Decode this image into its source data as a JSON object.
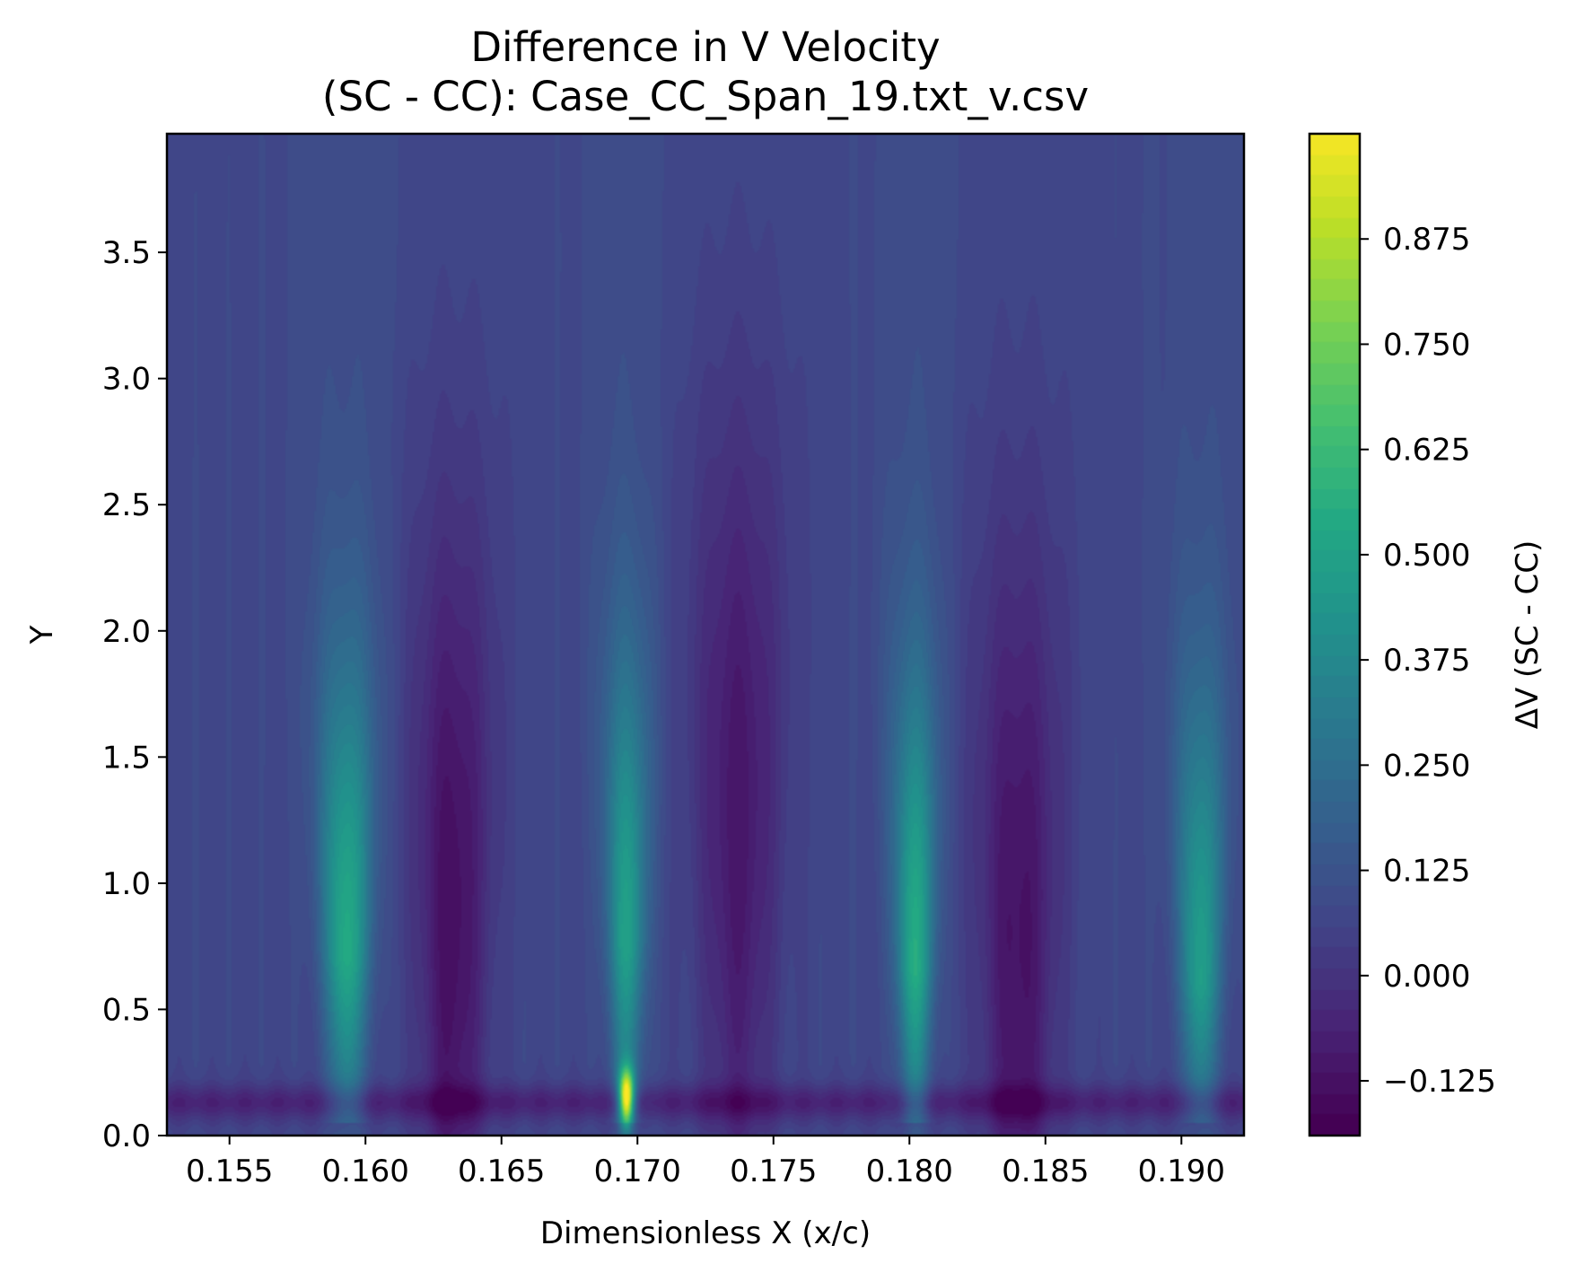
{
  "chart_data": {
    "type": "heatmap",
    "title": "Difference in V Velocity",
    "subtitle": "(SC - CC): Case_CC_Span_19.txt_v.csv",
    "xlabel": "Dimensionless X (x/c)",
    "ylabel": "Y",
    "xlim": [
      0.1527,
      0.1923
    ],
    "ylim": [
      0.0,
      3.97
    ],
    "x_ticks": [
      0.155,
      0.16,
      0.165,
      0.17,
      0.175,
      0.18,
      0.185,
      0.19
    ],
    "x_tick_labels": [
      "0.155",
      "0.160",
      "0.165",
      "0.170",
      "0.175",
      "0.180",
      "0.185",
      "0.190"
    ],
    "y_ticks": [
      0.0,
      0.5,
      1.0,
      1.5,
      2.0,
      2.5,
      3.0,
      3.5
    ],
    "y_tick_labels": [
      "0.0",
      "0.5",
      "1.0",
      "1.5",
      "2.0",
      "2.5",
      "3.0",
      "3.5"
    ],
    "colorbar": {
      "label": "ΔV (SC - CC)",
      "range": [
        -0.19,
        1.0
      ],
      "ticks": [
        -0.125,
        0.0,
        0.125,
        0.25,
        0.375,
        0.5,
        0.625,
        0.75,
        0.875
      ],
      "tick_labels": [
        "−0.125",
        "0.000",
        "0.125",
        "0.250",
        "0.375",
        "0.500",
        "0.625",
        "0.750",
        "0.875"
      ],
      "colormap": "viridis"
    },
    "features": {
      "jets": [
        {
          "x": 0.1593,
          "y_peak": 0.7,
          "peak": 0.56,
          "width": 0.0006
        },
        {
          "x": 0.1696,
          "y_peak": 0.75,
          "peak": 0.5,
          "width": 0.0005
        },
        {
          "x": 0.1696,
          "y_peak": 0.15,
          "peak": 1.0,
          "width": 0.00025
        },
        {
          "x": 0.1802,
          "y_peak": 0.65,
          "peak": 0.56,
          "width": 0.0005
        },
        {
          "x": 0.1907,
          "y_peak": 0.6,
          "peak": 0.5,
          "width": 0.00055
        }
      ],
      "troughs": [
        {
          "x": 0.1632,
          "y_peak": 0.9,
          "peak": -0.13,
          "width": 0.0011
        },
        {
          "x": 0.1737,
          "y_peak": 1.3,
          "peak": -0.1,
          "width": 0.0012
        },
        {
          "x": 0.184,
          "y_peak": 0.8,
          "peak": -0.12,
          "width": 0.0012
        }
      ],
      "background": 0.08,
      "near_wall_minimum": -0.16
    }
  },
  "colors": {
    "viridis_low": "#440154",
    "viridis_high": "#fde725"
  }
}
